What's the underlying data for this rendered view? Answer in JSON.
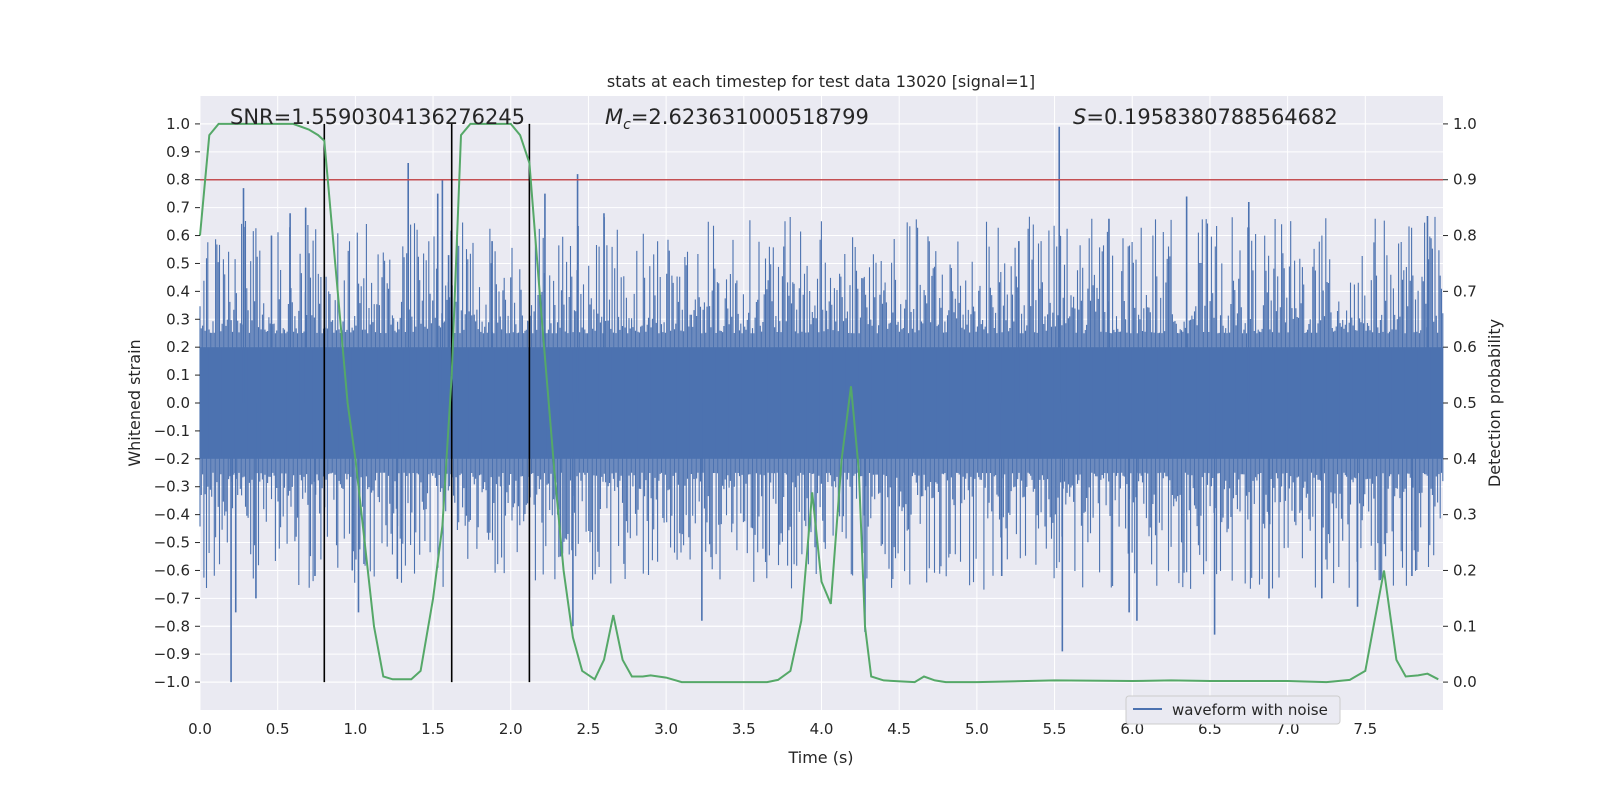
{
  "chart_data": {
    "type": "line",
    "title": "stats at each timestep for test data 13020 [signal=1]",
    "xlabel": "Time (s)",
    "ylabel_left": "Whitened strain",
    "ylabel_right": "Detection probability",
    "xlim": [
      0.0,
      8.0
    ],
    "ylim_left": [
      -1.1,
      1.1
    ],
    "ylim_right": [
      -0.05,
      1.05
    ],
    "xticks": [
      "0.0",
      "0.5",
      "1.0",
      "1.5",
      "2.0",
      "2.5",
      "3.0",
      "3.5",
      "4.0",
      "4.5",
      "5.0",
      "5.5",
      "6.0",
      "6.5",
      "7.0",
      "7.5"
    ],
    "yticks_left": [
      "1.0",
      "0.9",
      "0.8",
      "0.7",
      "0.6",
      "0.5",
      "0.4",
      "0.3",
      "0.2",
      "0.1",
      "0.0",
      "-0.1",
      "-0.2",
      "-0.3",
      "-0.4",
      "-0.5",
      "-0.6",
      "-0.7",
      "-0.8",
      "-0.9",
      "-1.0"
    ],
    "yticks_right": [
      "1.0",
      "0.9",
      "0.8",
      "0.7",
      "0.6",
      "0.5",
      "0.4",
      "0.3",
      "0.2",
      "0.1",
      "0.0"
    ],
    "annotations": {
      "snr": "SNR=1.5590304136276245",
      "mc_symbol": "M",
      "mc_sub": "c",
      "mc_value": "=2.623631000518799",
      "s_symbol": "S",
      "s_value": "=0.1958380788564682"
    },
    "legend": {
      "label": "waveform with noise",
      "location": "lower-right"
    },
    "threshold": {
      "value_right": 0.9,
      "color": "#c44e52"
    },
    "vertical_lines": [
      0.8,
      1.62,
      2.12
    ],
    "series": [
      {
        "name": "waveform with noise",
        "color": "#4c72b0",
        "axis": "left",
        "style": "noise",
        "dense_band": [
          -0.2,
          0.2
        ],
        "spikes": [
          {
            "t": 0.2,
            "y": -1.0
          },
          {
            "t": 0.23,
            "y": -0.75
          },
          {
            "t": 0.28,
            "y": 0.77
          },
          {
            "t": 0.36,
            "y": -0.7
          },
          {
            "t": 0.46,
            "y": 0.6
          },
          {
            "t": 0.58,
            "y": 0.68
          },
          {
            "t": 0.68,
            "y": 0.7
          },
          {
            "t": 0.74,
            "y": -0.62
          },
          {
            "t": 0.98,
            "y": -0.6
          },
          {
            "t": 1.02,
            "y": -0.75
          },
          {
            "t": 1.27,
            "y": -0.63
          },
          {
            "t": 1.34,
            "y": 0.86
          },
          {
            "t": 1.53,
            "y": 0.75
          },
          {
            "t": 1.56,
            "y": 0.8
          },
          {
            "t": 1.6,
            "y": 0.53
          },
          {
            "t": 1.88,
            "y": 0.58
          },
          {
            "t": 2.22,
            "y": 0.75
          },
          {
            "t": 2.32,
            "y": -0.55
          },
          {
            "t": 2.4,
            "y": -0.8
          },
          {
            "t": 2.43,
            "y": 0.82
          },
          {
            "t": 2.6,
            "y": 0.68
          },
          {
            "t": 3.23,
            "y": -0.78
          },
          {
            "t": 4.28,
            "y": -0.82
          },
          {
            "t": 5.16,
            "y": -0.62
          },
          {
            "t": 5.27,
            "y": 0.58
          },
          {
            "t": 5.53,
            "y": 0.99
          },
          {
            "t": 5.55,
            "y": -0.89
          },
          {
            "t": 5.85,
            "y": 0.66
          },
          {
            "t": 5.98,
            "y": -0.75
          },
          {
            "t": 6.03,
            "y": -0.78
          },
          {
            "t": 6.35,
            "y": 0.74
          },
          {
            "t": 6.53,
            "y": -0.83
          },
          {
            "t": 6.75,
            "y": 0.72
          },
          {
            "t": 6.88,
            "y": -0.7
          },
          {
            "t": 7.22,
            "y": -0.7
          },
          {
            "t": 7.45,
            "y": -0.73
          },
          {
            "t": 7.8,
            "y": -0.62
          },
          {
            "t": 7.9,
            "y": 0.67
          }
        ]
      },
      {
        "name": "detection probability",
        "color": "#55a868",
        "axis": "right",
        "points": [
          [
            0.0,
            0.8
          ],
          [
            0.06,
            0.98
          ],
          [
            0.12,
            1.0
          ],
          [
            0.2,
            1.0
          ],
          [
            0.3,
            1.0
          ],
          [
            0.4,
            1.0
          ],
          [
            0.5,
            1.0
          ],
          [
            0.6,
            1.0
          ],
          [
            0.7,
            0.99
          ],
          [
            0.76,
            0.98
          ],
          [
            0.8,
            0.97
          ],
          [
            0.88,
            0.72
          ],
          [
            0.95,
            0.5
          ],
          [
            1.0,
            0.4
          ],
          [
            1.06,
            0.25
          ],
          [
            1.12,
            0.1
          ],
          [
            1.18,
            0.01
          ],
          [
            1.24,
            0.005
          ],
          [
            1.3,
            0.005
          ],
          [
            1.36,
            0.005
          ],
          [
            1.42,
            0.02
          ],
          [
            1.5,
            0.15
          ],
          [
            1.56,
            0.28
          ],
          [
            1.62,
            0.55
          ],
          [
            1.68,
            0.98
          ],
          [
            1.74,
            1.0
          ],
          [
            1.8,
            1.0
          ],
          [
            1.9,
            1.0
          ],
          [
            2.0,
            1.0
          ],
          [
            2.06,
            0.98
          ],
          [
            2.12,
            0.93
          ],
          [
            2.2,
            0.65
          ],
          [
            2.28,
            0.38
          ],
          [
            2.34,
            0.2
          ],
          [
            2.4,
            0.08
          ],
          [
            2.46,
            0.02
          ],
          [
            2.54,
            0.005
          ],
          [
            2.6,
            0.04
          ],
          [
            2.66,
            0.12
          ],
          [
            2.72,
            0.04
          ],
          [
            2.78,
            0.01
          ],
          [
            2.85,
            0.01
          ],
          [
            2.9,
            0.012
          ],
          [
            3.0,
            0.008
          ],
          [
            3.1,
            0.0
          ],
          [
            3.3,
            0.0
          ],
          [
            3.5,
            0.0
          ],
          [
            3.65,
            0.0
          ],
          [
            3.72,
            0.004
          ],
          [
            3.8,
            0.02
          ],
          [
            3.87,
            0.11
          ],
          [
            3.94,
            0.34
          ],
          [
            4.0,
            0.18
          ],
          [
            4.06,
            0.14
          ],
          [
            4.13,
            0.4
          ],
          [
            4.19,
            0.53
          ],
          [
            4.24,
            0.38
          ],
          [
            4.28,
            0.1
          ],
          [
            4.32,
            0.01
          ],
          [
            4.4,
            0.003
          ],
          [
            4.6,
            0.0
          ],
          [
            4.66,
            0.01
          ],
          [
            4.73,
            0.003
          ],
          [
            4.8,
            0.0
          ],
          [
            5.0,
            0.0
          ],
          [
            5.5,
            0.003
          ],
          [
            6.0,
            0.002
          ],
          [
            6.25,
            0.003
          ],
          [
            6.5,
            0.002
          ],
          [
            7.0,
            0.002
          ],
          [
            7.25,
            0.0
          ],
          [
            7.4,
            0.004
          ],
          [
            7.5,
            0.02
          ],
          [
            7.56,
            0.11
          ],
          [
            7.62,
            0.2
          ],
          [
            7.7,
            0.04
          ],
          [
            7.76,
            0.01
          ],
          [
            7.84,
            0.012
          ],
          [
            7.9,
            0.015
          ],
          [
            7.97,
            0.005
          ]
        ]
      }
    ]
  }
}
